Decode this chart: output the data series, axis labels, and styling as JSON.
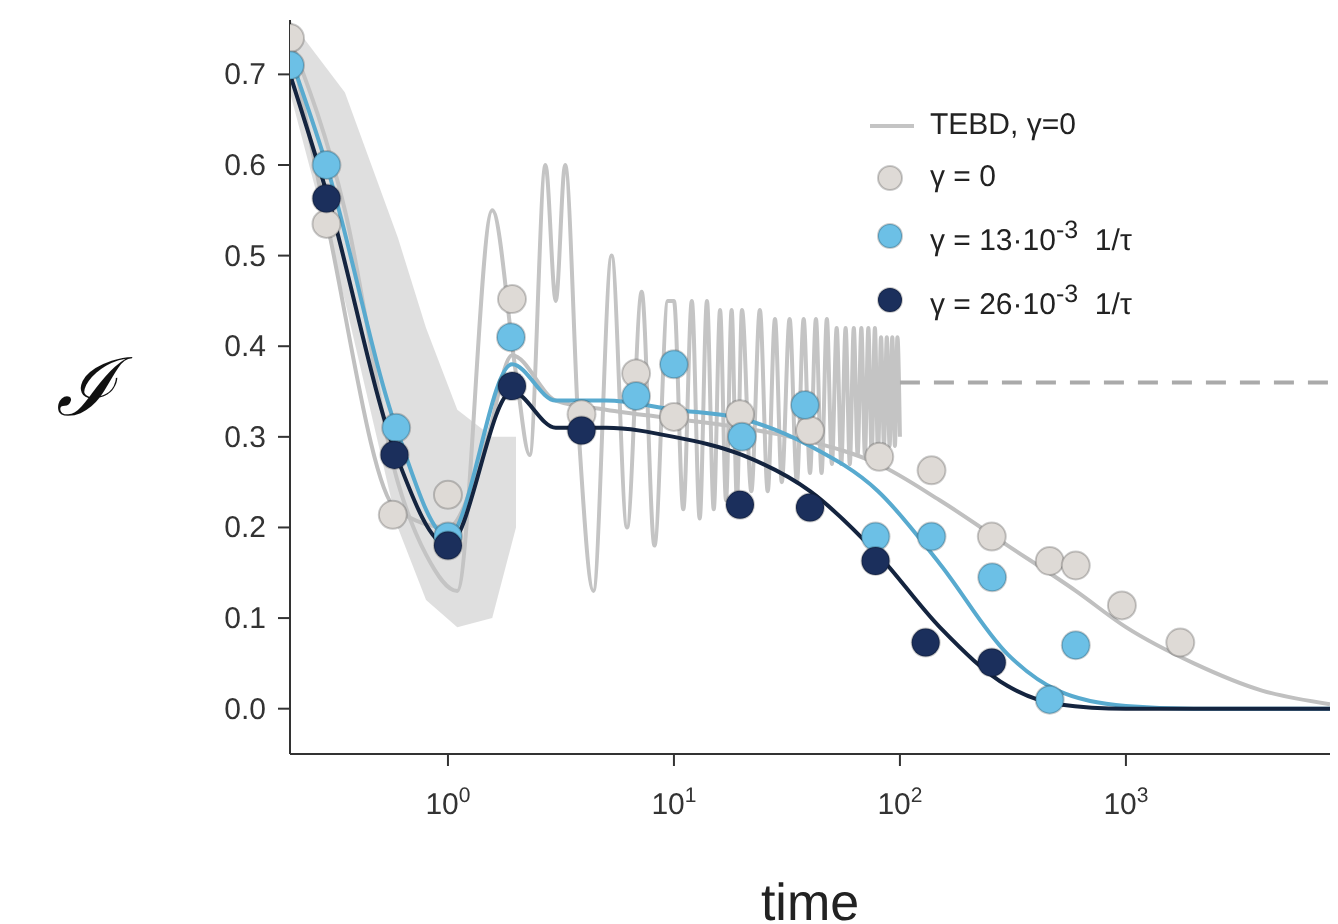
{
  "chart_data": {
    "type": "scatter",
    "xlabel": "time",
    "ylabel": "ℐ",
    "log": "x",
    "xlim": [
      0.2,
      8000
    ],
    "ylim": [
      -0.05,
      0.76
    ],
    "xticks": [
      {
        "value": 1,
        "label": "10$^{0}$"
      },
      {
        "value": 10,
        "label": "10$^{1}$"
      },
      {
        "value": 100,
        "label": "10$^{2}$"
      },
      {
        "value": 1000,
        "label": "10$^{3}$"
      }
    ],
    "yticks": [
      {
        "value": 0,
        "label": "0.0"
      },
      {
        "value": 0.1,
        "label": "0.1"
      },
      {
        "value": 0.2,
        "label": "0.2"
      },
      {
        "value": 0.3,
        "label": "0.3"
      },
      {
        "value": 0.4,
        "label": "0.4"
      },
      {
        "value": 0.5,
        "label": "0.5"
      },
      {
        "value": 0.6,
        "label": "0.6"
      },
      {
        "value": 0.7,
        "label": "0.7"
      }
    ],
    "legend": "top right",
    "series": [
      {
        "name": "TEBD, γ=0",
        "type": "line",
        "color": "#c4c4c4",
        "marker": "none",
        "line_style": "solid",
        "x": [
          0.2,
          0.35,
          0.6,
          0.8,
          1.1,
          1.57,
          2.0,
          2.3,
          2.7,
          3.0,
          3.3,
          3.8,
          4.4,
          5.3,
          6.2,
          7.2,
          8.2,
          9.4,
          10,
          11,
          12,
          13,
          14,
          15,
          16,
          17,
          18,
          19,
          20,
          22,
          24,
          26,
          28,
          30,
          32.5,
          35,
          37.5,
          40,
          42.5,
          45,
          47.5,
          50,
          52.5,
          55,
          57.5,
          60,
          62.5,
          65,
          67.5,
          70,
          72.5,
          75,
          77.5,
          80,
          82.5,
          85,
          87.5,
          90,
          92.5,
          95,
          97.5,
          100
        ],
        "values": [
          0.74,
          0.55,
          0.25,
          0.17,
          0.13,
          0.55,
          0.37,
          0.28,
          0.6,
          0.45,
          0.6,
          0.3,
          0.13,
          0.5,
          0.2,
          0.46,
          0.18,
          0.45,
          0.45,
          0.22,
          0.45,
          0.21,
          0.45,
          0.22,
          0.44,
          0.23,
          0.44,
          0.23,
          0.44,
          0.24,
          0.44,
          0.24,
          0.43,
          0.25,
          0.43,
          0.25,
          0.43,
          0.26,
          0.43,
          0.26,
          0.43,
          0.27,
          0.42,
          0.27,
          0.42,
          0.27,
          0.42,
          0.28,
          0.42,
          0.28,
          0.42,
          0.28,
          0.42,
          0.28,
          0.41,
          0.29,
          0.41,
          0.29,
          0.41,
          0.29,
          0.41,
          0.3
        ],
        "lower": [
          0.68,
          0.45,
          0.2,
          0.12,
          0.09,
          0.1,
          0.2,
          null,
          null,
          null,
          null,
          null,
          null,
          null,
          null,
          null,
          null,
          null,
          null,
          null,
          null,
          null,
          null,
          null,
          null,
          null,
          null,
          null,
          null,
          null,
          null,
          null,
          null,
          null,
          null,
          null,
          null,
          null,
          null,
          null,
          null,
          null,
          null,
          null,
          null,
          null,
          null,
          null,
          null,
          null,
          null,
          null,
          null,
          null,
          null,
          null,
          null,
          null,
          null,
          null,
          null,
          null
        ],
        "upper": [
          0.76,
          0.68,
          0.52,
          0.42,
          0.33,
          0.3,
          0.3,
          null,
          null,
          null,
          null,
          null,
          null,
          null,
          null,
          null,
          null,
          null,
          null,
          null,
          null,
          null,
          null,
          null,
          null,
          null,
          null,
          null,
          null,
          null,
          null,
          null,
          null,
          null,
          null,
          null,
          null,
          null,
          null,
          null,
          null,
          null,
          null,
          null,
          null,
          null,
          null,
          null,
          null,
          null,
          null,
          null,
          null,
          null,
          null,
          null,
          null,
          null,
          null,
          null,
          null,
          null
        ]
      },
      {
        "type": "line",
        "color": "#aaaaaa",
        "marker": "none",
        "line_style": "dashed",
        "x": [
          100,
          8000
        ],
        "values": [
          0.36,
          0.36
        ]
      },
      {
        "type": "line",
        "color": "#c0c0c0",
        "marker": "none",
        "line_style": "solid",
        "x": [
          0.2,
          0.29,
          0.59,
          1,
          1.5,
          1.92,
          3,
          5,
          10,
          20,
          40,
          80,
          150,
          300,
          600,
          1000,
          2000,
          4000,
          8000
        ],
        "values": [
          0.74,
          0.54,
          0.22,
          0.2,
          0.3,
          0.39,
          0.34,
          0.33,
          0.32,
          0.31,
          0.295,
          0.27,
          0.23,
          0.18,
          0.13,
          0.09,
          0.05,
          0.02,
          0.005
        ]
      },
      {
        "type": "line",
        "color": "#58aacf",
        "marker": "none",
        "line_style": "solid",
        "x": [
          0.2,
          0.29,
          0.59,
          1,
          1.92,
          3,
          5,
          10,
          20,
          40,
          80,
          150,
          300,
          500,
          1000,
          2000,
          8000
        ],
        "values": [
          0.72,
          0.6,
          0.31,
          0.19,
          0.38,
          0.34,
          0.34,
          0.33,
          0.32,
          0.29,
          0.24,
          0.16,
          0.06,
          0.02,
          0.003,
          0,
          0
        ]
      },
      {
        "type": "line",
        "color": "#14243f",
        "marker": "none",
        "line_style": "solid",
        "x": [
          0.2,
          0.29,
          0.59,
          1,
          1.92,
          3,
          5,
          10,
          20,
          40,
          80,
          150,
          300,
          500,
          1000,
          8000
        ],
        "values": [
          0.7,
          0.57,
          0.28,
          0.18,
          0.35,
          0.31,
          0.31,
          0.3,
          0.28,
          0.24,
          0.17,
          0.09,
          0.025,
          0.005,
          0,
          0
        ]
      },
      {
        "name": "γ = 0",
        "color": "#dedad6",
        "marker": "circle",
        "x": [
          0.2,
          0.29,
          0.57,
          1,
          1.92,
          3.9,
          6.8,
          10,
          19.6,
          40,
          81,
          138,
          255,
          460,
          600,
          960,
          1740
        ],
        "values": [
          0.74,
          0.535,
          0.214,
          0.236,
          0.452,
          0.325,
          0.37,
          0.322,
          0.325,
          0.307,
          0.278,
          0.263,
          0.19,
          0.163,
          0.158,
          0.114,
          0.073
        ]
      },
      {
        "name": "γ = 13·10$^{-3}$  1/τ",
        "color": "#6cc0e6",
        "marker": "circle",
        "x": [
          0.2,
          0.29,
          0.59,
          1,
          1.9,
          6.8,
          10,
          20,
          38,
          78,
          138,
          256,
          460,
          600
        ],
        "values": [
          0.71,
          0.6,
          0.31,
          0.19,
          0.41,
          0.345,
          0.38,
          0.3,
          0.335,
          0.19,
          0.19,
          0.145,
          0.01,
          0.07
        ]
      },
      {
        "name": "γ = 26·10$^{-3}$  1/τ",
        "color": "#1b2f5c",
        "marker": "circle",
        "x": [
          0.29,
          0.58,
          1,
          1.92,
          3.9,
          19.6,
          40,
          78,
          130,
          255
        ],
        "values": [
          0.563,
          0.28,
          0.18,
          0.356,
          0.307,
          0.225,
          0.222,
          0.163,
          0.073,
          0.051
        ]
      }
    ]
  }
}
